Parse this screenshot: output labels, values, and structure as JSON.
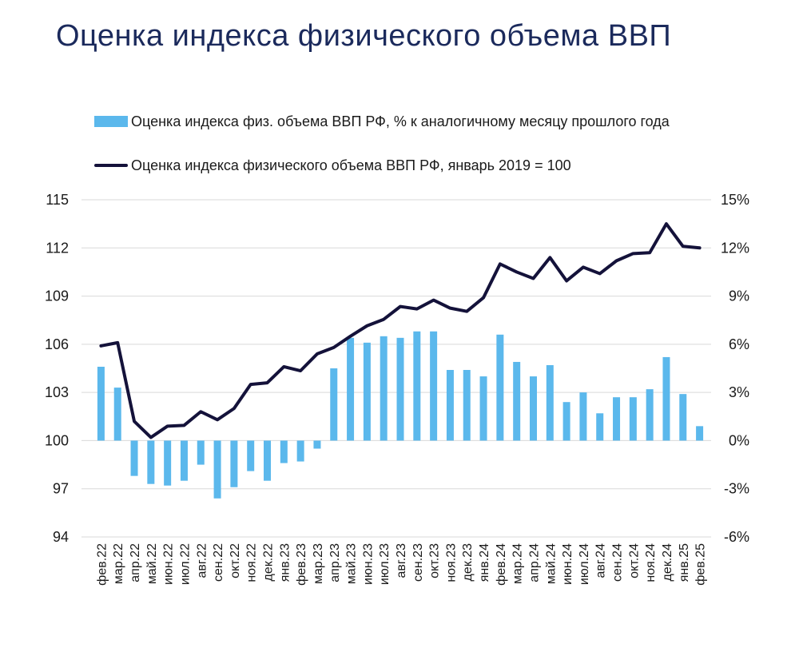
{
  "title": "Оценка индекса физического объема ВВП",
  "chart_data": {
    "type": "bar+line",
    "categories": [
      "фев.22",
      "мар.22",
      "апр.22",
      "май.22",
      "июн.22",
      "июл.22",
      "авг.22",
      "сен.22",
      "окт.22",
      "ноя.22",
      "дек.22",
      "янв.23",
      "фев.23",
      "мар.23",
      "апр.23",
      "май.23",
      "июн.23",
      "июл.23",
      "авг.23",
      "сен.23",
      "окт.23",
      "ноя.23",
      "дек.23",
      "янв.24",
      "фев.24",
      "мар.24",
      "апр.24",
      "май.24",
      "июн.24",
      "июл.24",
      "авг.24",
      "сен.24",
      "окт.24",
      "ноя.24",
      "дек.24",
      "янв.25",
      "фев.25"
    ],
    "series": [
      {
        "name": "Оценка индекса физ. объема ВВП РФ, % к аналогичному месяцу прошлого года",
        "type": "bar",
        "axis": "right",
        "color": "#5bb8ec",
        "values": [
          4.6,
          3.3,
          -2.2,
          -2.7,
          -2.8,
          -2.5,
          -1.5,
          -3.6,
          -2.9,
          -1.9,
          -2.5,
          -1.4,
          -1.3,
          -0.5,
          4.5,
          6.4,
          6.1,
          6.5,
          6.4,
          6.8,
          6.8,
          4.4,
          4.4,
          4.0,
          6.6,
          4.9,
          4.0,
          4.7,
          2.4,
          3.0,
          1.7,
          2.7,
          2.7,
          3.2,
          5.2,
          2.9,
          0.9
        ]
      },
      {
        "name": "Оценка индекса физического объема ВВП РФ, январь 2019 = 100",
        "type": "line",
        "axis": "left",
        "color": "#14123a",
        "values": [
          105.9,
          106.1,
          101.2,
          100.2,
          100.9,
          100.95,
          101.8,
          101.3,
          102.0,
          103.5,
          103.6,
          104.6,
          104.35,
          105.4,
          105.8,
          106.5,
          107.15,
          107.55,
          108.35,
          108.2,
          108.75,
          108.25,
          108.05,
          108.9,
          111.0,
          110.5,
          110.1,
          111.4,
          109.95,
          110.8,
          110.4,
          111.2,
          111.65,
          111.7,
          113.5,
          112.1,
          112.0
        ]
      }
    ],
    "y_left": {
      "min": 94,
      "max": 115,
      "ticks": [
        "94",
        "97",
        "100",
        "103",
        "106",
        "109",
        "112",
        "115"
      ]
    },
    "y_right": {
      "min": -6,
      "max": 15,
      "ticks": [
        "-6%",
        "-3%",
        "0%",
        "3%",
        "6%",
        "9%",
        "12%",
        "15%"
      ]
    },
    "grid": "horizontal",
    "legend_position": "top-left"
  }
}
